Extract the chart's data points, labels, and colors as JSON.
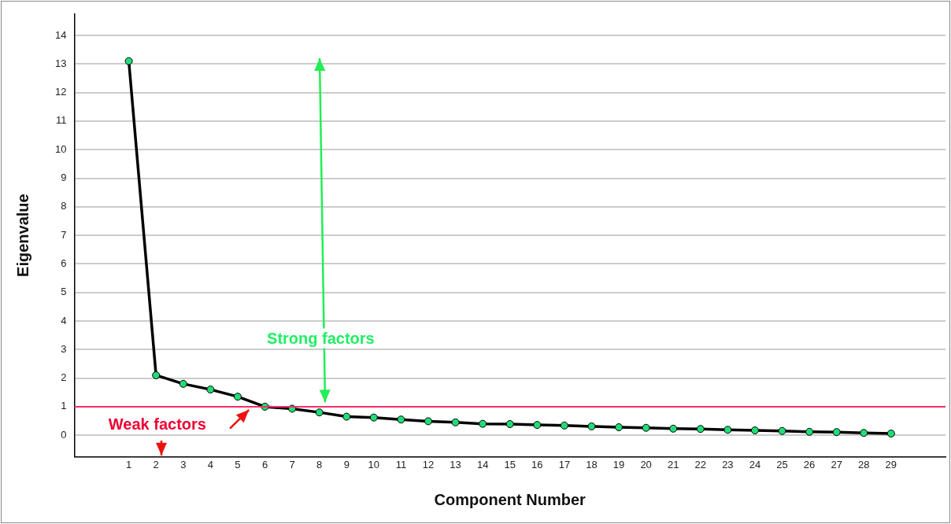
{
  "chart_data": {
    "type": "line",
    "xlabel": "Component Number",
    "ylabel": "Eigenvalue",
    "x": [
      1,
      2,
      3,
      4,
      5,
      6,
      7,
      8,
      9,
      10,
      11,
      12,
      13,
      14,
      15,
      16,
      17,
      18,
      19,
      20,
      21,
      22,
      23,
      24,
      25,
      26,
      27,
      28,
      29
    ],
    "series": [
      {
        "color": "#000000",
        "values": [
          13.1,
          2.1,
          1.8,
          1.6,
          1.35,
          1.0,
          0.93,
          0.8,
          0.65,
          0.62,
          0.55,
          0.49,
          0.45,
          0.4,
          0.39,
          0.36,
          0.34,
          0.31,
          0.28,
          0.26,
          0.23,
          0.22,
          0.19,
          0.17,
          0.15,
          0.12,
          0.11,
          0.08,
          0.06
        ]
      }
    ],
    "xlim": [
      -1,
      31
    ],
    "xticks": [
      1,
      2,
      3,
      4,
      5,
      6,
      7,
      8,
      9,
      10,
      11,
      12,
      13,
      14,
      15,
      16,
      17,
      18,
      19,
      20,
      21,
      22,
      23,
      24,
      25,
      26,
      27,
      28,
      29
    ],
    "ylim": [
      -0.75,
      14.75
    ],
    "yticks": [
      0,
      1,
      2,
      3,
      4,
      5,
      6,
      7,
      8,
      9,
      10,
      11,
      12,
      13,
      14
    ],
    "ref_lines": [
      {
        "axis": "y",
        "value": 1,
        "color": "#f0306b"
      }
    ],
    "annotations": [
      "Strong factors",
      "Weak factors"
    ],
    "grid": "y",
    "legend": false,
    "marker": "circle",
    "line_style": "solid"
  }
}
